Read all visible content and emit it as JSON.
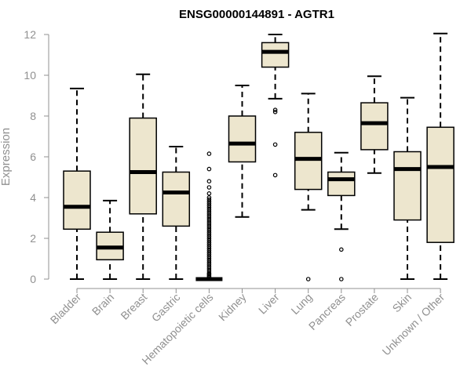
{
  "chart_data": {
    "type": "boxplot",
    "title": "ENSG00000144891 - AGTR1",
    "xlabel": "",
    "ylabel": "Expression",
    "ylim": [
      0,
      12
    ],
    "yticks": [
      "0",
      "2",
      "4",
      "6",
      "8",
      "10",
      "12"
    ],
    "grid": false,
    "legend": "none",
    "box_fill_color": "#ede6ce",
    "line_color": "#000000",
    "axis_text_color": "#909090",
    "categories": [
      "Bladder",
      "Brain",
      "Breast",
      "Gastric",
      "Hematopoietic cells",
      "Kidney",
      "Liver",
      "Lung",
      "Pancreas",
      "Prostate",
      "Skin",
      "Unknown / Other"
    ],
    "boxes": [
      {
        "category": "Bladder",
        "min": 0,
        "q1": 2.45,
        "median": 3.55,
        "q3": 5.3,
        "max": 9.35,
        "outliers": []
      },
      {
        "category": "Brain",
        "min": 0,
        "q1": 0.95,
        "median": 1.55,
        "q3": 2.3,
        "max": 3.85,
        "outliers": []
      },
      {
        "category": "Breast",
        "min": 0,
        "q1": 3.2,
        "median": 5.25,
        "q3": 7.9,
        "max": 10.05,
        "outliers": []
      },
      {
        "category": "Gastric",
        "min": 0,
        "q1": 2.6,
        "median": 4.25,
        "q3": 5.25,
        "max": 6.5,
        "outliers": []
      },
      {
        "category": "Hematopoietic cells",
        "min": 0,
        "q1": 0,
        "median": 0,
        "q3": 0,
        "max": 0,
        "outliers": [
          0.1,
          0.15,
          0.2,
          0.25,
          0.3,
          0.4,
          0.5,
          0.6,
          0.7,
          0.8,
          0.9,
          1.0,
          1.1,
          1.2,
          1.3,
          1.4,
          1.5,
          1.6,
          1.7,
          1.8,
          1.9,
          2.0,
          2.1,
          2.2,
          2.3,
          2.4,
          2.5,
          2.6,
          2.7,
          2.8,
          2.9,
          3.0,
          3.1,
          3.2,
          3.3,
          3.4,
          3.5,
          3.6,
          3.7,
          3.8,
          3.9,
          4.0,
          4.2,
          4.5,
          4.8,
          5.4,
          6.15
        ]
      },
      {
        "category": "Kidney",
        "min": 3.05,
        "q1": 5.75,
        "median": 6.65,
        "q3": 8.0,
        "max": 9.5,
        "outliers": []
      },
      {
        "category": "Liver",
        "min": 8.85,
        "q1": 10.4,
        "median": 11.15,
        "q3": 11.6,
        "max": 12.0,
        "outliers": [
          8.2,
          8.3,
          6.6,
          5.1
        ]
      },
      {
        "category": "Lung",
        "min": 3.4,
        "q1": 4.4,
        "median": 5.9,
        "q3": 7.2,
        "max": 9.1,
        "outliers": [
          0.0
        ]
      },
      {
        "category": "Pancreas",
        "min": 2.45,
        "q1": 4.1,
        "median": 4.9,
        "q3": 5.25,
        "max": 6.2,
        "outliers": [
          1.45,
          0.0
        ]
      },
      {
        "category": "Prostate",
        "min": 5.2,
        "q1": 6.35,
        "median": 7.65,
        "q3": 8.65,
        "max": 9.95,
        "outliers": []
      },
      {
        "category": "Skin",
        "min": 0,
        "q1": 2.9,
        "median": 5.4,
        "q3": 6.25,
        "max": 8.9,
        "outliers": []
      },
      {
        "category": "Unknown / Other",
        "min": 0,
        "q1": 1.8,
        "median": 5.5,
        "q3": 7.45,
        "max": 12.05,
        "outliers": []
      }
    ]
  }
}
